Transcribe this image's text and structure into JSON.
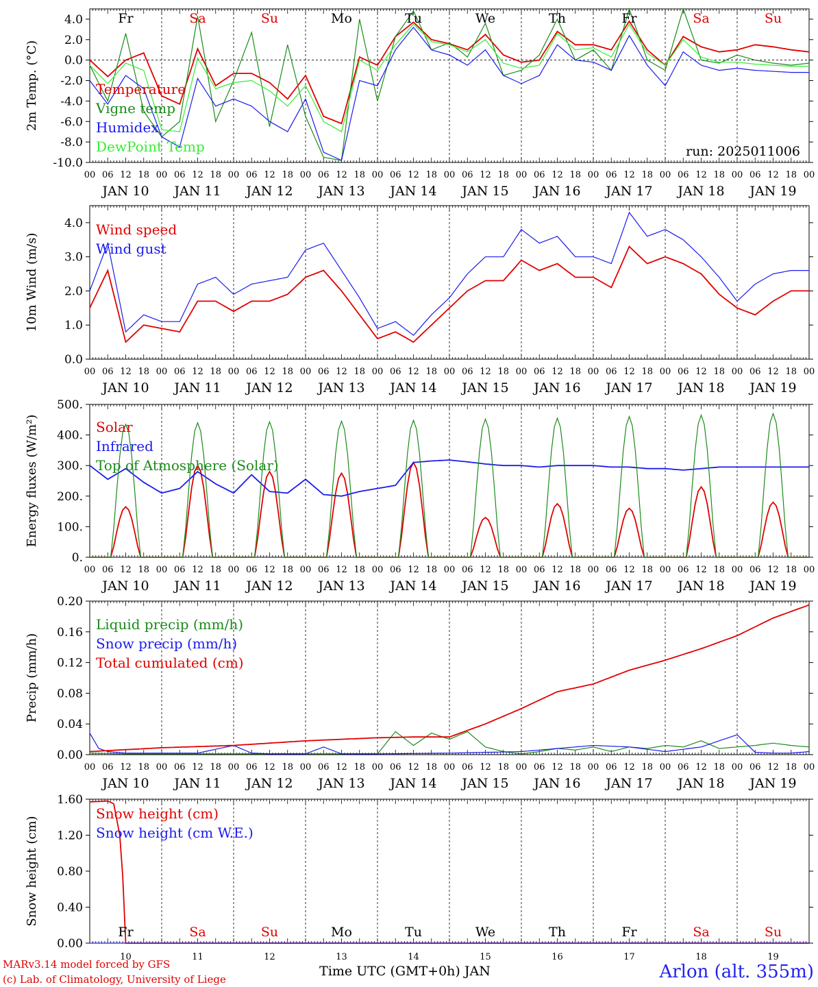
{
  "days_of_week": [
    "Fr",
    "Sa",
    "Su",
    "Mo",
    "Tu",
    "We",
    "Th",
    "Fr",
    "Sa",
    "Su"
  ],
  "weekend_flags": [
    false,
    true,
    true,
    false,
    false,
    false,
    false,
    false,
    true,
    true
  ],
  "date_labels": [
    "JAN 10",
    "JAN 11",
    "JAN 12",
    "JAN 13",
    "JAN 14",
    "JAN 15",
    "JAN 16",
    "JAN 17",
    "JAN 18",
    "JAN 19"
  ],
  "bottom_day_numbers": [
    "10",
    "11",
    "12",
    "13",
    "14",
    "15",
    "16",
    "17",
    "18",
    "19"
  ],
  "hour_labels": [
    "00",
    "06",
    "12",
    "18"
  ],
  "hour_end_label": "00",
  "x_axis_title": "Time UTC (GMT+0h) JAN",
  "run_label": "run: 2025011006",
  "credit_line1": "MARv3.14 model forced by GFS",
  "credit_line2": "(c) Lab. of Climatology, University of Liege",
  "station": "Arlon (alt. 355m)",
  "colors": {
    "red": "#e00000",
    "green": "#1a8a1a",
    "blue": "#1a1aee",
    "lightgreen": "#33ee33",
    "weekend": "#e00000"
  },
  "chart_data": [
    {
      "type": "line",
      "ylabel": "2m Temp. (°C)",
      "ylim": [
        -10,
        5
      ],
      "yticks": [
        "-10.0",
        "-8.0",
        "-6.0",
        "-4.0",
        "-2.0",
        "0.0",
        "2.0",
        "4.0"
      ],
      "zero_line": true,
      "x_unit": "hours since JAN 10 00 UTC",
      "series": [
        {
          "name": "Temperature",
          "color": "red",
          "x": [
            0,
            6,
            12,
            18,
            24,
            30,
            36,
            42,
            48,
            54,
            60,
            66,
            72,
            78,
            84,
            90,
            96,
            102,
            108,
            114,
            120,
            126,
            132,
            138,
            144,
            150,
            156,
            162,
            168,
            174,
            180,
            186,
            192,
            198,
            204,
            210,
            216,
            222,
            228,
            234,
            240
          ],
          "y": [
            0.0,
            -1.6,
            0.0,
            0.7,
            -3.5,
            -4.3,
            1.1,
            -2.5,
            -1.3,
            -1.3,
            -2.2,
            -3.8,
            -1.5,
            -5.5,
            -6.2,
            0.3,
            -0.5,
            2.3,
            3.7,
            2.0,
            1.6,
            1.0,
            2.5,
            0.5,
            -0.2,
            0.0,
            2.8,
            1.5,
            1.5,
            1.0,
            3.8,
            1.0,
            -0.5,
            2.3,
            1.3,
            0.8,
            1.0,
            1.5,
            1.3,
            1.0,
            0.8
          ]
        },
        {
          "name": "Vigne temp",
          "color": "green",
          "x": [
            0,
            6,
            12,
            18,
            24,
            30,
            36,
            42,
            48,
            54,
            60,
            66,
            72,
            78,
            84,
            90,
            96,
            102,
            108,
            114,
            120,
            126,
            132,
            138,
            144,
            150,
            156,
            162,
            168,
            174,
            180,
            186,
            192,
            198,
            204,
            210,
            216,
            222,
            228,
            234,
            240
          ],
          "y": [
            -0.5,
            -4.0,
            2.6,
            -5.0,
            -7.5,
            -6.0,
            4.3,
            -6.0,
            -2.0,
            2.7,
            -6.5,
            1.5,
            -5.5,
            -9.5,
            -9.8,
            4.0,
            -4.0,
            2.3,
            4.8,
            1.0,
            1.7,
            0.3,
            3.6,
            -1.5,
            -1.0,
            0.5,
            4.0,
            0.0,
            1.0,
            -1.0,
            5.0,
            0.0,
            -1.0,
            5.0,
            0.0,
            -0.3,
            0.5,
            0.0,
            -0.3,
            -0.5,
            -0.3
          ]
        },
        {
          "name": "Humidex",
          "color": "blue",
          "x": [
            0,
            6,
            12,
            18,
            24,
            30,
            36,
            42,
            48,
            54,
            60,
            66,
            72,
            78,
            84,
            90,
            96,
            102,
            108,
            114,
            120,
            126,
            132,
            138,
            144,
            150,
            156,
            162,
            168,
            174,
            180,
            186,
            192,
            198,
            204,
            210,
            216,
            222,
            228,
            234,
            240
          ],
          "y": [
            -2.0,
            -4.3,
            -1.5,
            -2.8,
            -7.5,
            -8.5,
            -1.8,
            -4.5,
            -3.8,
            -4.5,
            -6.0,
            -7.0,
            -3.8,
            -9.0,
            -9.8,
            -2.0,
            -2.5,
            1.0,
            3.2,
            1.0,
            0.5,
            -0.5,
            1.0,
            -1.5,
            -2.3,
            -1.5,
            1.5,
            0.0,
            -0.2,
            -1.0,
            2.4,
            -0.5,
            -2.5,
            0.8,
            -0.5,
            -1.0,
            -0.8,
            -1.0,
            -1.1,
            -1.2,
            -1.2
          ]
        },
        {
          "name": "DewPoint Temp",
          "color": "lightgreen",
          "x": [
            0,
            6,
            12,
            18,
            24,
            30,
            36,
            42,
            48,
            54,
            60,
            66,
            72,
            78,
            84,
            90,
            96,
            102,
            108,
            114,
            120,
            126,
            132,
            138,
            144,
            150,
            156,
            162,
            168,
            174,
            180,
            186,
            192,
            198,
            204,
            210,
            216,
            222,
            228,
            234,
            240
          ],
          "y": [
            -0.5,
            -2.3,
            -0.3,
            -1.0,
            -6.8,
            -7.0,
            0.2,
            -2.8,
            -2.2,
            -2.0,
            -3.0,
            -4.5,
            -2.5,
            -6.0,
            -7.0,
            0.0,
            -1.0,
            1.5,
            3.5,
            1.8,
            1.5,
            0.8,
            2.0,
            -0.3,
            -0.8,
            -0.5,
            2.6,
            1.0,
            1.2,
            0.3,
            3.5,
            0.7,
            -0.5,
            2.0,
            0.3,
            -0.2,
            -0.2,
            -0.4,
            -0.5,
            -0.6,
            -0.6
          ]
        }
      ]
    },
    {
      "type": "line",
      "ylabel": "10m Wind (m/s)",
      "ylim": [
        0,
        4.5
      ],
      "yticks": [
        "0.0",
        "1.0",
        "2.0",
        "3.0",
        "4.0"
      ],
      "x_unit": "hours since JAN 10 00 UTC",
      "series": [
        {
          "name": "Wind speed",
          "color": "red",
          "x": [
            0,
            6,
            12,
            18,
            24,
            30,
            36,
            42,
            48,
            54,
            60,
            66,
            72,
            78,
            84,
            90,
            96,
            102,
            108,
            114,
            120,
            126,
            132,
            138,
            144,
            150,
            156,
            162,
            168,
            174,
            180,
            186,
            192,
            198,
            204,
            210,
            216,
            222,
            228,
            234,
            240
          ],
          "y": [
            1.5,
            2.6,
            0.5,
            1.0,
            0.9,
            0.8,
            1.7,
            1.7,
            1.4,
            1.7,
            1.7,
            1.9,
            2.4,
            2.6,
            2.0,
            1.3,
            0.6,
            0.8,
            0.5,
            1.0,
            1.5,
            2.0,
            2.3,
            2.3,
            2.9,
            2.6,
            2.8,
            2.4,
            2.4,
            2.1,
            3.3,
            2.8,
            3.0,
            2.8,
            2.5,
            1.9,
            1.5,
            1.3,
            1.7,
            2.0,
            2.0
          ]
        },
        {
          "name": "Wind gust",
          "color": "blue",
          "x": [
            0,
            6,
            12,
            18,
            24,
            30,
            36,
            42,
            48,
            54,
            60,
            66,
            72,
            78,
            84,
            90,
            96,
            102,
            108,
            114,
            120,
            126,
            132,
            138,
            144,
            150,
            156,
            162,
            168,
            174,
            180,
            186,
            192,
            198,
            204,
            210,
            216,
            222,
            228,
            234,
            240
          ],
          "y": [
            2.0,
            3.4,
            0.8,
            1.3,
            1.1,
            1.1,
            2.2,
            2.4,
            1.9,
            2.2,
            2.3,
            2.4,
            3.2,
            3.4,
            2.6,
            1.8,
            0.9,
            1.1,
            0.7,
            1.3,
            1.8,
            2.5,
            3.0,
            3.0,
            3.8,
            3.4,
            3.6,
            3.0,
            3.0,
            2.8,
            4.3,
            3.6,
            3.8,
            3.5,
            3.0,
            2.4,
            1.7,
            2.2,
            2.5,
            2.6,
            2.6
          ]
        }
      ]
    },
    {
      "type": "line",
      "ylabel": "Energy fluxes (W/m²)",
      "ylim": [
        0,
        500
      ],
      "yticks": [
        "0.",
        "100.",
        "200.",
        "300.",
        "400.",
        "500."
      ],
      "x_unit": "hours since JAN 10 00 UTC",
      "series": [
        {
          "name": "Solar",
          "color": "red",
          "daily_peaks": [
            165,
            300,
            280,
            275,
            310,
            130,
            175,
            160,
            230,
            180
          ]
        },
        {
          "name": "Infrared",
          "color": "blue",
          "x": [
            0,
            6,
            12,
            18,
            24,
            30,
            36,
            42,
            48,
            54,
            60,
            66,
            72,
            78,
            84,
            90,
            96,
            102,
            108,
            114,
            120,
            126,
            132,
            138,
            144,
            150,
            156,
            162,
            168,
            174,
            180,
            186,
            192,
            198,
            204,
            210,
            216,
            222,
            228,
            234,
            240
          ],
          "y": [
            300,
            255,
            290,
            245,
            210,
            225,
            280,
            240,
            210,
            270,
            215,
            210,
            255,
            205,
            200,
            215,
            225,
            235,
            310,
            315,
            318,
            312,
            305,
            300,
            300,
            295,
            300,
            300,
            300,
            295,
            295,
            290,
            290,
            285,
            290,
            295,
            295,
            295,
            295,
            295,
            295
          ]
        },
        {
          "name": "Top of Atmosphere (Solar)",
          "color": "green",
          "daily_peaks": [
            435,
            440,
            443,
            445,
            448,
            452,
            455,
            460,
            465,
            470
          ]
        }
      ]
    },
    {
      "type": "line",
      "ylabel": "Precip (mm/h)",
      "ylim": [
        0,
        0.2
      ],
      "yticks": [
        "0.00",
        "0.04",
        "0.08",
        "0.12",
        "0.16",
        "0.20"
      ],
      "x_unit": "hours since JAN 10 00 UTC",
      "series": [
        {
          "name": "Liquid precip (mm/h)",
          "color": "green",
          "x": [
            0,
            12,
            24,
            36,
            48,
            60,
            72,
            84,
            96,
            102,
            108,
            114,
            120,
            126,
            132,
            138,
            144,
            150,
            156,
            162,
            168,
            174,
            180,
            186,
            192,
            198,
            204,
            210,
            216,
            222,
            228,
            234,
            240
          ],
          "y": [
            0.002,
            0.001,
            0.001,
            0.001,
            0.001,
            0.001,
            0.001,
            0.001,
            0.001,
            0.03,
            0.012,
            0.028,
            0.02,
            0.03,
            0.01,
            0.004,
            0.001,
            0.004,
            0.008,
            0.006,
            0.01,
            0.004,
            0.01,
            0.008,
            0.012,
            0.01,
            0.018,
            0.008,
            0.01,
            0.012,
            0.015,
            0.012,
            0.01
          ]
        },
        {
          "name": "Snow precip (mm/h)",
          "color": "blue",
          "x": [
            0,
            3,
            6,
            12,
            24,
            36,
            48,
            54,
            60,
            72,
            78,
            84,
            96,
            120,
            144,
            168,
            180,
            192,
            204,
            216,
            222,
            228,
            234,
            240
          ],
          "y": [
            0.028,
            0.008,
            0.004,
            0.002,
            0.002,
            0.002,
            0.012,
            0.002,
            0.001,
            0.001,
            0.01,
            0.001,
            0.001,
            0.002,
            0.004,
            0.012,
            0.01,
            0.004,
            0.01,
            0.026,
            0.003,
            0.002,
            0.002,
            0.004
          ]
        },
        {
          "name": "Total cumulated (cm)",
          "color": "red",
          "x": [
            0,
            24,
            48,
            72,
            96,
            108,
            120,
            132,
            144,
            156,
            168,
            180,
            192,
            204,
            216,
            228,
            240
          ],
          "y": [
            0.004,
            0.009,
            0.012,
            0.018,
            0.022,
            0.023,
            0.023,
            0.04,
            0.06,
            0.082,
            0.092,
            0.11,
            0.123,
            0.138,
            0.155,
            0.178,
            0.195
          ]
        }
      ]
    },
    {
      "type": "line",
      "ylabel": "Snow height (cm)",
      "ylim": [
        0,
        1.6
      ],
      "yticks": [
        "0.00",
        "0.40",
        "0.80",
        "1.20",
        "1.60"
      ],
      "x_unit": "hours since JAN 10 00 UTC",
      "series": [
        {
          "name": "Snow height (cm)",
          "color": "red",
          "x": [
            0,
            6,
            8,
            10,
            11,
            12,
            13,
            24,
            240
          ],
          "y": [
            1.57,
            1.58,
            1.55,
            1.2,
            0.75,
            0.0,
            0.0,
            0.0,
            0.0
          ]
        },
        {
          "name": "Snow height (cm W.E.)",
          "color": "blue",
          "x": [
            0,
            240
          ],
          "y": [
            0.0,
            0.0
          ]
        }
      ]
    }
  ]
}
